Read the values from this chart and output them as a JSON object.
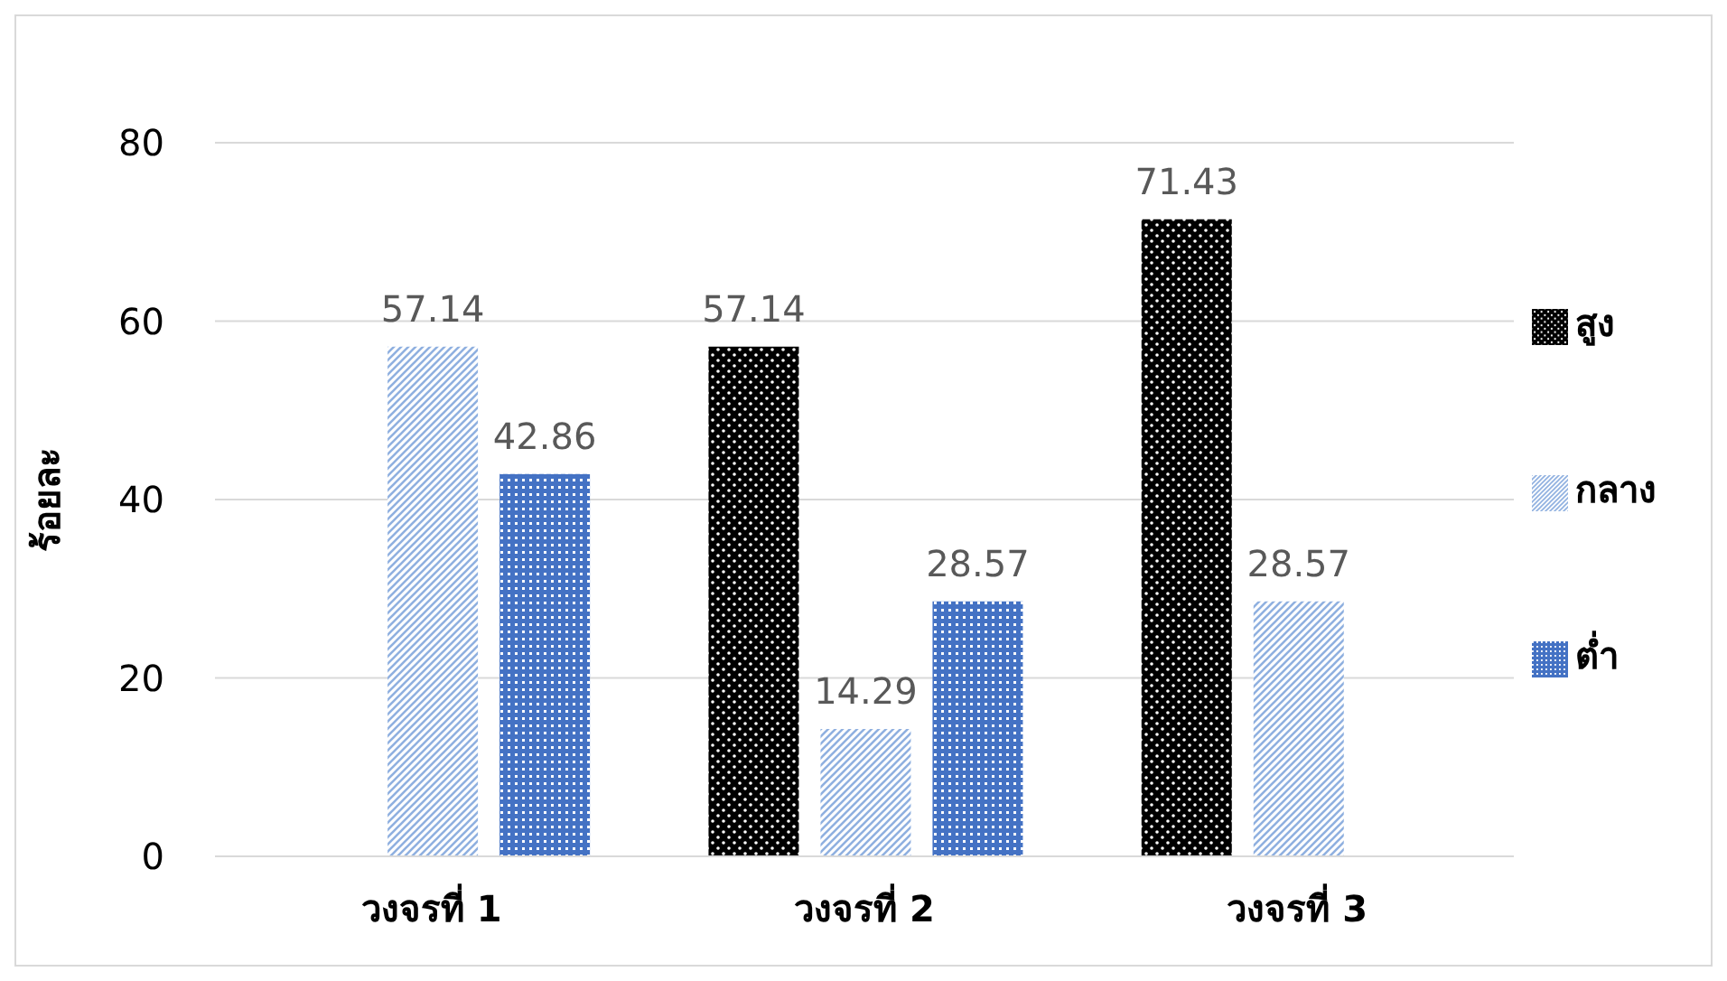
{
  "chart_data": {
    "type": "bar",
    "ylabel": "ร้อยละ",
    "categories": [
      "วงจรที่ 1",
      "วงจรที่ 2",
      "วงจรที่ 3"
    ],
    "series": [
      {
        "name": "สูง",
        "color": "#000000",
        "values": [
          null,
          57.14,
          71.43
        ]
      },
      {
        "name": "กลาง",
        "color": "#8fb0e0",
        "values": [
          57.14,
          14.29,
          28.57
        ]
      },
      {
        "name": "ต่ำ",
        "color": "#4472c4",
        "values": [
          42.86,
          28.57,
          null
        ]
      }
    ],
    "ylim": [
      0,
      80
    ],
    "yticks": [
      0,
      20,
      40,
      60,
      80
    ],
    "grid": "y",
    "legend": "right",
    "data_labels": true
  }
}
